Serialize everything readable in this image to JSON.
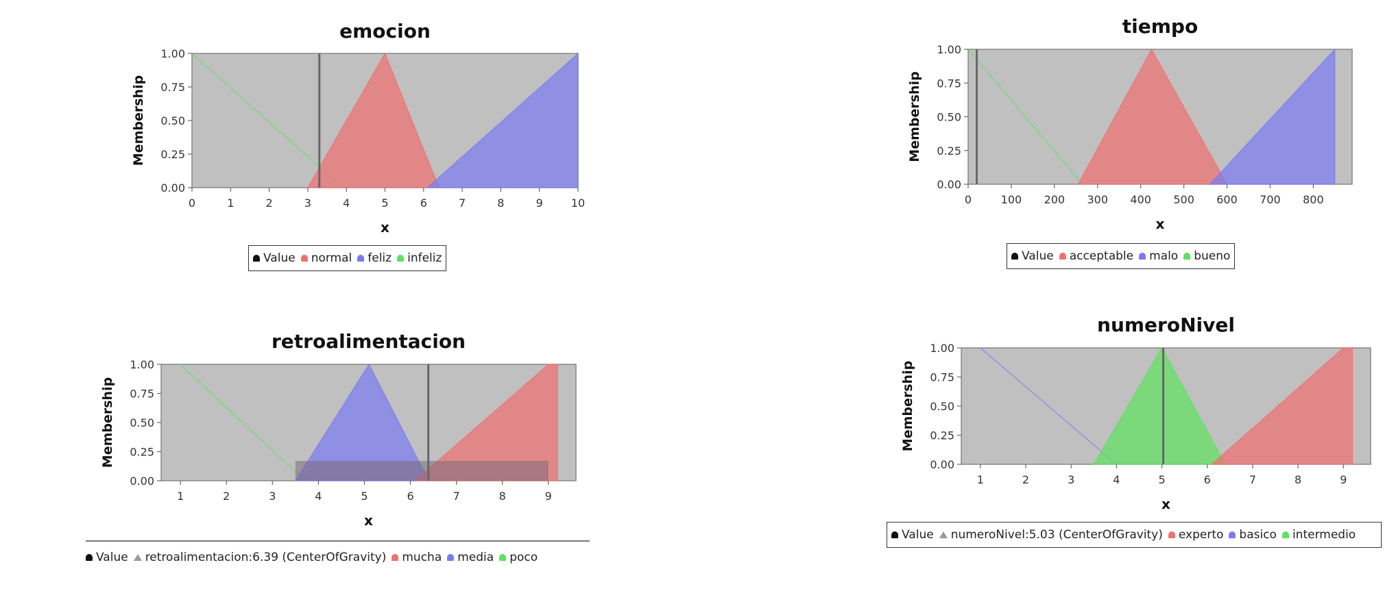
{
  "chart_data": [
    {
      "id": "emocion",
      "type": "area",
      "title": "emocion",
      "xlabel": "x",
      "ylabel": "Membership",
      "xlim": [
        0,
        10
      ],
      "ylim": [
        0,
        1
      ],
      "xticks": [
        "0",
        "1",
        "2",
        "3",
        "4",
        "5",
        "6",
        "7",
        "8",
        "9",
        "10"
      ],
      "yticks": [
        "0.00",
        "0.25",
        "0.50",
        "0.75",
        "1.00"
      ],
      "value_line": 3.3,
      "series": [
        {
          "name": "infeliz",
          "color": "#5fe05f",
          "points": [
            [
              0,
              1
            ],
            [
              0,
              1
            ],
            [
              3.9,
              0
            ]
          ]
        },
        {
          "name": "normal",
          "color": "#ef7070",
          "points": [
            [
              3.0,
              0
            ],
            [
              5.0,
              1
            ],
            [
              6.4,
              0
            ]
          ]
        },
        {
          "name": "feliz",
          "color": "#7b7bf0",
          "points": [
            [
              6.1,
              0
            ],
            [
              10,
              1
            ],
            [
              10,
              0
            ]
          ]
        }
      ],
      "legend": [
        "Value",
        "normal",
        "feliz",
        "infeliz"
      ]
    },
    {
      "id": "tiempo",
      "type": "area",
      "title": "tiempo",
      "xlabel": "x",
      "ylabel": "Membership",
      "xlim": [
        0,
        890
      ],
      "ylim": [
        0,
        1
      ],
      "xticks": [
        "0",
        "100",
        "200",
        "300",
        "400",
        "500",
        "600",
        "700",
        "800"
      ],
      "yticks": [
        "0.00",
        "0.25",
        "0.50",
        "0.75",
        "1.00"
      ],
      "value_line": 20,
      "series": [
        {
          "name": "bueno",
          "color": "#5fe05f",
          "points": [
            [
              0,
              1
            ],
            [
              0,
              1
            ],
            [
              265,
              0
            ]
          ]
        },
        {
          "name": "acceptable",
          "color": "#ef7070",
          "points": [
            [
              255,
              0
            ],
            [
              425,
              1
            ],
            [
              600,
              0
            ]
          ]
        },
        {
          "name": "malo",
          "color": "#7b7bf0",
          "points": [
            [
              560,
              0
            ],
            [
              850,
              1
            ],
            [
              850,
              0
            ]
          ]
        }
      ],
      "legend": [
        "Value",
        "acceptable",
        "malo",
        "bueno"
      ]
    },
    {
      "id": "retroalimentacion",
      "type": "area",
      "title": "retroalimentacion",
      "xlabel": "x",
      "ylabel": "Membership",
      "xlim": [
        0.58,
        9.6
      ],
      "ylim": [
        0,
        1
      ],
      "xticks": [
        "1",
        "2",
        "3",
        "4",
        "5",
        "6",
        "7",
        "8",
        "9"
      ],
      "yticks": [
        "0.00",
        "0.25",
        "0.50",
        "0.75",
        "1.00"
      ],
      "value_line": 6.39,
      "defuzz_area": {
        "x": [
          3.5,
          9.0
        ],
        "y": 0.17
      },
      "series": [
        {
          "name": "poco",
          "color": "#5fe05f",
          "points": [
            [
              1,
              1
            ],
            [
              1,
              1
            ],
            [
              3.7,
              0
            ]
          ]
        },
        {
          "name": "media",
          "color": "#7b7bf0",
          "points": [
            [
              3.5,
              0
            ],
            [
              5.1,
              1
            ],
            [
              6.4,
              0
            ]
          ]
        },
        {
          "name": "mucha",
          "color": "#ef7070",
          "points": [
            [
              6.1,
              0
            ],
            [
              9.0,
              1
            ],
            [
              9.2,
              1
            ],
            [
              9.2,
              0
            ]
          ]
        }
      ],
      "legend": [
        "Value",
        "retroalimentacion:6.39 (CenterOfGravity)",
        "mucha",
        "media",
        "poco"
      ]
    },
    {
      "id": "numeroNivel",
      "type": "area",
      "title": "numeroNivel",
      "xlabel": "x",
      "ylabel": "Membership",
      "xlim": [
        0.58,
        9.6
      ],
      "ylim": [
        0,
        1
      ],
      "xticks": [
        "1",
        "2",
        "3",
        "4",
        "5",
        "6",
        "7",
        "8",
        "9"
      ],
      "yticks": [
        "0.00",
        "0.25",
        "0.50",
        "0.75",
        "1.00"
      ],
      "value_line": 5.03,
      "series": [
        {
          "name": "basico",
          "color": "#7b7bf0",
          "points": [
            [
              1,
              1
            ],
            [
              1,
              1
            ],
            [
              4.0,
              0
            ]
          ]
        },
        {
          "name": "intermedio",
          "color": "#5fe05f",
          "points": [
            [
              3.5,
              0
            ],
            [
              5.0,
              1
            ],
            [
              6.4,
              0
            ]
          ]
        },
        {
          "name": "experto",
          "color": "#ef7070",
          "points": [
            [
              6.1,
              0
            ],
            [
              9.0,
              1
            ],
            [
              9.2,
              1
            ],
            [
              9.2,
              0
            ]
          ]
        }
      ],
      "legend": [
        "Value",
        "numeroNivel:5.03 (CenterOfGravity)",
        "experto",
        "basico",
        "intermedio"
      ]
    }
  ],
  "colors": {
    "plot_background": "#c0c0c0",
    "value_marker": "#111111",
    "defuzz_marker": "#9a9a9a",
    "value_line": "#666666"
  }
}
